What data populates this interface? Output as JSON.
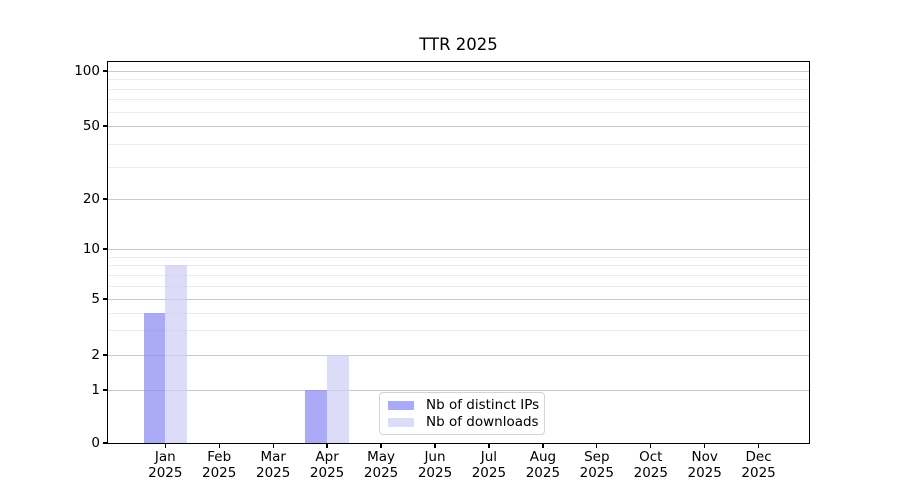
{
  "chart_data": {
    "type": "bar",
    "title": "TTR 2025",
    "categories": [
      "Jan",
      "Feb",
      "Mar",
      "Apr",
      "May",
      "Jun",
      "Jul",
      "Aug",
      "Sep",
      "Oct",
      "Nov",
      "Dec"
    ],
    "category_year_suffix": "2025",
    "series": [
      {
        "name": "Nb of distinct IPs",
        "color": "rgba(134,134,242,0.7)",
        "values": [
          4,
          0,
          0,
          1,
          0,
          0,
          0,
          0,
          0,
          0,
          0,
          0
        ]
      },
      {
        "name": "Nb of downloads",
        "color": "rgba(205,205,246,0.7)",
        "values": [
          8,
          0,
          0,
          2,
          0,
          0,
          0,
          0,
          0,
          0,
          0,
          0
        ]
      }
    ],
    "y_ticks": [
      0,
      1,
      2,
      5,
      10,
      20,
      50,
      100
    ],
    "y_scale": "symlog",
    "ylim": [
      0,
      110
    ],
    "grid": "horizontal, major and minor lines",
    "legend_position": "inside lower-center",
    "colors": {
      "bar_distinct_ips": "#aaaaf6",
      "bar_downloads": "#dcdcf9",
      "grid_major": "#c9c9c9",
      "grid_minor": "#ebebeb",
      "axis": "#000000",
      "background": "#ffffff"
    }
  }
}
